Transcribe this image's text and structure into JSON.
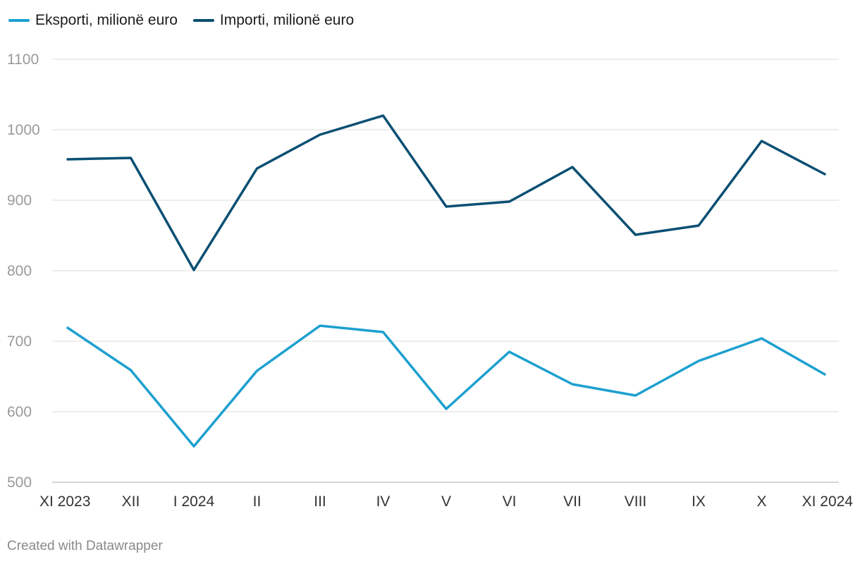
{
  "chart_data": {
    "type": "line",
    "title": "",
    "xlabel": "",
    "ylabel": "",
    "categories": [
      "XI 2023",
      "XII",
      "I 2024",
      "II",
      "III",
      "IV",
      "V",
      "VI",
      "VII",
      "VIII",
      "IX",
      "X",
      "XI 2024"
    ],
    "series": [
      {
        "name": "Eksporti, milionë euro",
        "color": "#1ca0cf",
        "values": [
          719,
          659,
          551,
          658,
          722,
          713,
          604,
          685,
          639,
          623,
          672,
          704,
          653
        ]
      },
      {
        "name": "Importi, milionë euro",
        "color": "#0b4f73",
        "values": [
          958,
          960,
          801,
          945,
          993,
          1020,
          891,
          898,
          947,
          851,
          864,
          984,
          937
        ]
      }
    ],
    "ylim": [
      500,
      1100
    ],
    "yticks": [
      500,
      600,
      700,
      800,
      900,
      1000,
      1100
    ],
    "grid": true,
    "legend": "top-left"
  },
  "footer": "Created with Datawrapper"
}
